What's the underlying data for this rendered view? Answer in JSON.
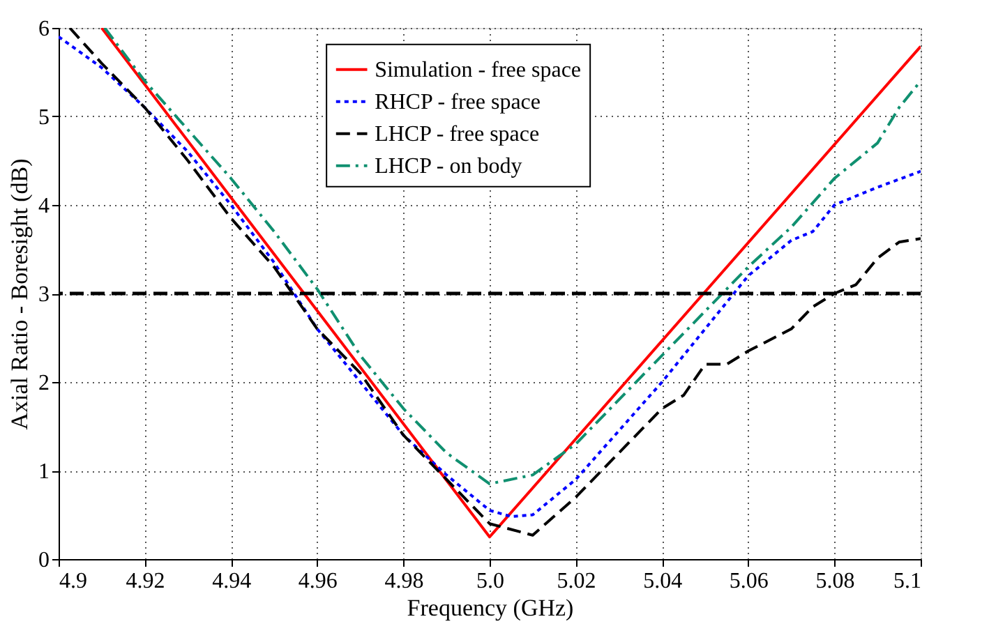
{
  "chart_data": {
    "type": "line",
    "xlabel": "Frequency (GHz)",
    "ylabel": "Axial Ratio - Boresight (dB)",
    "xlim": [
      4.9,
      5.1
    ],
    "xticks": [
      4.9,
      4.92,
      4.94,
      4.96,
      4.98,
      {
        "value": 5.0,
        "label": "5.0"
      },
      5.02,
      5.04,
      5.06,
      5.08,
      5.1
    ],
    "ylim": [
      0,
      6
    ],
    "yticks": [
      0,
      1,
      2,
      3,
      4,
      5,
      6
    ],
    "grid": true,
    "legend": "top",
    "series": [
      {
        "name": "Simulation - free space",
        "color": "#ff0000",
        "line_style": "solid",
        "x": [
          4.91,
          5.0,
          5.1
        ],
        "values": [
          6,
          0.25,
          5.79
        ]
      },
      {
        "name": "RHCP - free space",
        "color": "#0000ff",
        "line_style": "dotted",
        "x": [
          4.9,
          4.91,
          4.92,
          4.93,
          4.94,
          4.95,
          4.96,
          4.97,
          4.98,
          4.99,
          5.0,
          5.005,
          5.01,
          5.02,
          5.03,
          5.04,
          5.05,
          5.06,
          5.07,
          5.075,
          5.08,
          5.09,
          5.1
        ],
        "values": [
          5.9,
          5.55,
          5.1,
          4.6,
          4.0,
          3.35,
          2.6,
          2.0,
          1.4,
          0.95,
          0.55,
          0.48,
          0.5,
          0.9,
          1.45,
          2.0,
          2.6,
          3.2,
          3.6,
          3.7,
          4.0,
          4.2,
          4.38
        ]
      },
      {
        "name": "LHCP - free space",
        "color": "#000000",
        "line_style": "dashed",
        "x": [
          4.9026,
          4.91,
          4.92,
          4.93,
          4.94,
          4.95,
          4.96,
          4.97,
          4.98,
          4.99,
          5.0,
          5.01,
          5.02,
          5.03,
          5.04,
          5.045,
          5.05,
          5.055,
          5.06,
          5.07,
          5.075,
          5.08,
          5.085,
          5.09,
          5.095,
          5.1
        ],
        "values": [
          6,
          5.6,
          5.1,
          4.5,
          3.85,
          3.3,
          2.6,
          2.1,
          1.4,
          0.9,
          0.4,
          0.27,
          0.7,
          1.2,
          1.7,
          1.85,
          2.2,
          2.2,
          2.35,
          2.6,
          2.85,
          3.0,
          3.1,
          3.4,
          3.58,
          3.62
        ]
      },
      {
        "name": "LHCP - on body",
        "color": "#109070",
        "line_style": "dashdot",
        "x": [
          4.9107,
          4.92,
          4.93,
          4.94,
          4.95,
          4.96,
          4.97,
          4.98,
          4.99,
          5.0,
          5.01,
          5.02,
          5.03,
          5.04,
          5.05,
          5.06,
          5.07,
          5.08,
          5.09,
          5.095,
          5.1
        ],
        "values": [
          6,
          5.4,
          4.85,
          4.3,
          3.7,
          3.05,
          2.3,
          1.7,
          1.2,
          0.85,
          0.95,
          1.3,
          1.8,
          2.3,
          2.8,
          3.3,
          3.75,
          4.3,
          4.7,
          5.1,
          5.4
        ]
      }
    ],
    "ref_lines": [
      {
        "axis": "y",
        "value": 3,
        "color": "#000000",
        "line_style": "dashed"
      }
    ]
  }
}
